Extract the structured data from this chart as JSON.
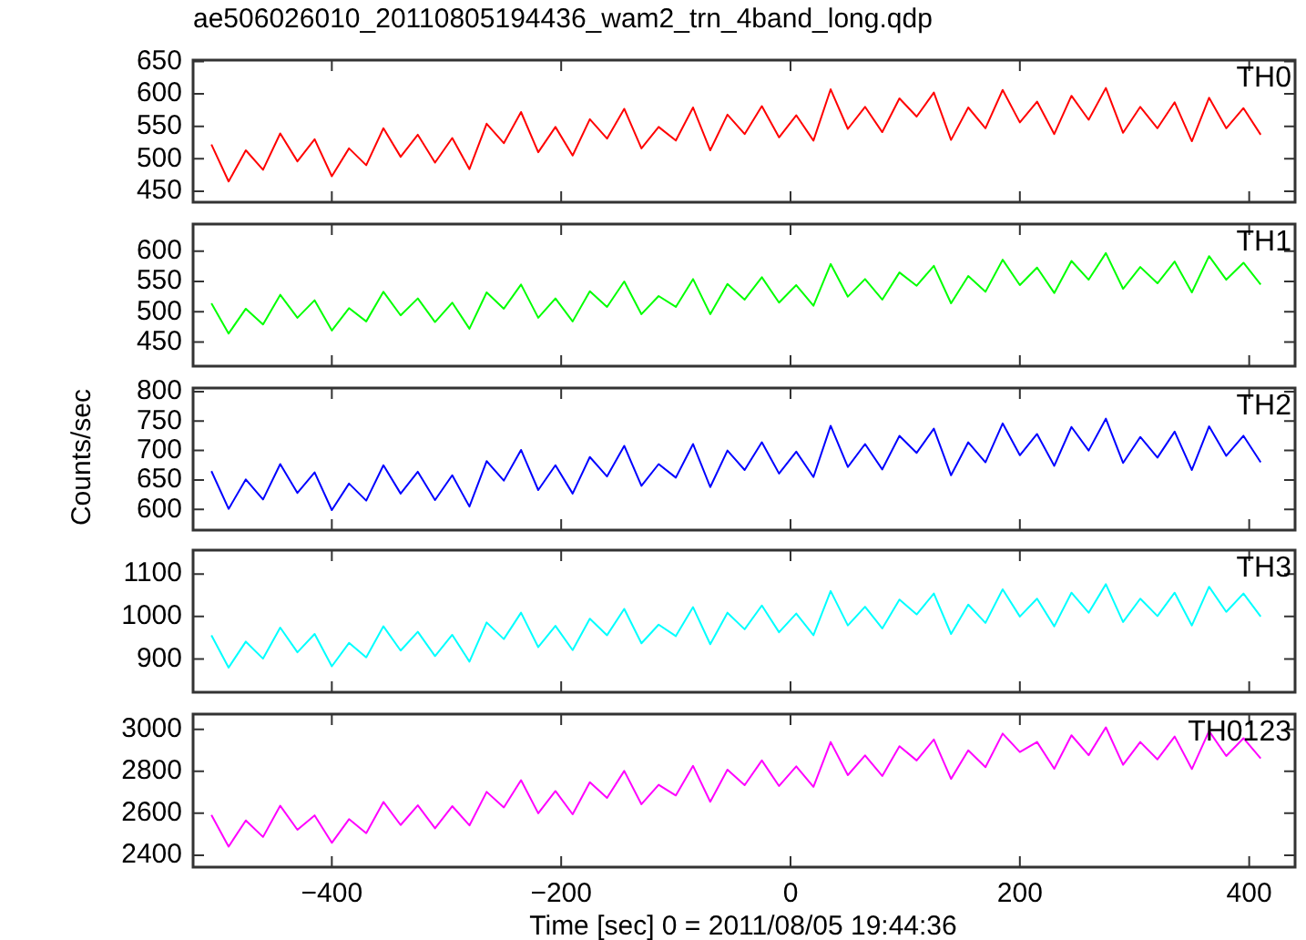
{
  "chart_data": [
    {
      "type": "line",
      "title": "ae506026010_20110805194436_wam2_trn_4band_long.qdp",
      "tick_labels": "y",
      "marker": "none",
      "grid": false,
      "xlim": [
        -521,
        440
      ],
      "xticks": [
        -400,
        -200,
        0,
        200,
        400
      ],
      "ylim": [
        433,
        652
      ],
      "yticks": [
        450,
        500,
        550,
        600,
        650
      ],
      "x": [
        -505,
        -490,
        -475,
        -460,
        -445,
        -430,
        -415,
        -400,
        -385,
        -370,
        -355,
        -340,
        -325,
        -310,
        -295,
        -280,
        -265,
        -250,
        -235,
        -220,
        -205,
        -190,
        -175,
        -160,
        -145,
        -130,
        -115,
        -100,
        -85,
        -70,
        -55,
        -40,
        -25,
        -10,
        5,
        20,
        35,
        50,
        65,
        80,
        95,
        110,
        125,
        140,
        155,
        170,
        185,
        200,
        215,
        230,
        245,
        260,
        275,
        290,
        305,
        320,
        335,
        350,
        365,
        380,
        395,
        410
      ],
      "series": [
        {
          "name": "TH0",
          "color": "#ff0000",
          "values": [
            522,
            465,
            513,
            483,
            539,
            496,
            530,
            473,
            516,
            490,
            547,
            503,
            537,
            494,
            532,
            484,
            554,
            524,
            572,
            510,
            549,
            505,
            561,
            531,
            577,
            516,
            549,
            528,
            579,
            513,
            568,
            538,
            581,
            533,
            567,
            528,
            607,
            546,
            580,
            541,
            593,
            565,
            602,
            529,
            579,
            547,
            606,
            556,
            588,
            538,
            597,
            560,
            609,
            540,
            580,
            547,
            587,
            527,
            594,
            547,
            578,
            537
          ]
        }
      ]
    },
    {
      "type": "line",
      "tick_labels": "y",
      "marker": "none",
      "grid": false,
      "xlim": [
        -521,
        440
      ],
      "xticks": [
        -400,
        -200,
        0,
        200,
        400
      ],
      "ylim": [
        410,
        645
      ],
      "yticks": [
        450,
        500,
        550,
        600
      ],
      "x": [
        -505,
        -490,
        -475,
        -460,
        -445,
        -430,
        -415,
        -400,
        -385,
        -370,
        -355,
        -340,
        -325,
        -310,
        -295,
        -280,
        -265,
        -250,
        -235,
        -220,
        -205,
        -190,
        -175,
        -160,
        -145,
        -130,
        -115,
        -100,
        -85,
        -70,
        -55,
        -40,
        -25,
        -10,
        5,
        20,
        35,
        50,
        65,
        80,
        95,
        110,
        125,
        140,
        155,
        170,
        185,
        200,
        215,
        230,
        245,
        260,
        275,
        290,
        305,
        320,
        335,
        350,
        365,
        380,
        395,
        410
      ],
      "series": [
        {
          "name": "TH1",
          "color": "#00ff00",
          "values": [
            514,
            464,
            505,
            479,
            528,
            490,
            519,
            469,
            506,
            484,
            533,
            494,
            522,
            483,
            515,
            472,
            532,
            505,
            545,
            490,
            522,
            484,
            534,
            508,
            550,
            496,
            526,
            508,
            554,
            496,
            546,
            520,
            557,
            515,
            544,
            510,
            579,
            525,
            554,
            520,
            565,
            543,
            576,
            514,
            559,
            533,
            586,
            544,
            573,
            531,
            584,
            553,
            597,
            538,
            574,
            547,
            583,
            532,
            592,
            553,
            581,
            545
          ]
        }
      ]
    },
    {
      "type": "line",
      "ylabel": "Counts/sec",
      "tick_labels": "y",
      "marker": "none",
      "grid": false,
      "xlim": [
        -521,
        440
      ],
      "xticks": [
        -400,
        -200,
        0,
        200,
        400
      ],
      "ylim": [
        565,
        806
      ],
      "yticks": [
        600,
        650,
        700,
        750,
        800
      ],
      "x": [
        -505,
        -490,
        -475,
        -460,
        -445,
        -430,
        -415,
        -400,
        -385,
        -370,
        -355,
        -340,
        -325,
        -310,
        -295,
        -280,
        -265,
        -250,
        -235,
        -220,
        -205,
        -190,
        -175,
        -160,
        -145,
        -130,
        -115,
        -100,
        -85,
        -70,
        -55,
        -40,
        -25,
        -10,
        5,
        20,
        35,
        50,
        65,
        80,
        95,
        110,
        125,
        140,
        155,
        170,
        185,
        200,
        215,
        230,
        245,
        260,
        275,
        290,
        305,
        320,
        335,
        350,
        365,
        380,
        395,
        410
      ],
      "series": [
        {
          "name": "TH2",
          "color": "#0000ff",
          "values": [
            665,
            601,
            651,
            617,
            677,
            628,
            663,
            599,
            644,
            615,
            675,
            627,
            664,
            616,
            658,
            605,
            682,
            649,
            701,
            633,
            675,
            627,
            689,
            656,
            708,
            640,
            677,
            654,
            711,
            638,
            700,
            667,
            714,
            661,
            698,
            655,
            742,
            672,
            711,
            668,
            725,
            696,
            737,
            658,
            714,
            680,
            746,
            692,
            728,
            674,
            740,
            700,
            754,
            679,
            723,
            688,
            732,
            667,
            741,
            691,
            725,
            680
          ]
        }
      ]
    },
    {
      "type": "line",
      "tick_labels": "y",
      "marker": "none",
      "grid": false,
      "xlim": [
        -521,
        440
      ],
      "xticks": [
        -400,
        -200,
        0,
        200,
        400
      ],
      "ylim": [
        822,
        1156
      ],
      "yticks": [
        900,
        1000,
        1100
      ],
      "x": [
        -505,
        -490,
        -475,
        -460,
        -445,
        -430,
        -415,
        -400,
        -385,
        -370,
        -355,
        -340,
        -325,
        -310,
        -295,
        -280,
        -265,
        -250,
        -235,
        -220,
        -205,
        -190,
        -175,
        -160,
        -145,
        -130,
        -115,
        -100,
        -85,
        -70,
        -55,
        -40,
        -25,
        -10,
        5,
        20,
        35,
        50,
        65,
        80,
        95,
        110,
        125,
        140,
        155,
        170,
        185,
        200,
        215,
        230,
        245,
        260,
        275,
        290,
        305,
        320,
        335,
        350,
        365,
        380,
        395,
        410
      ],
      "series": [
        {
          "name": "TH3",
          "color": "#00ffff",
          "values": [
            956,
            880,
            941,
            901,
            974,
            916,
            959,
            883,
            938,
            904,
            977,
            920,
            964,
            907,
            957,
            894,
            986,
            947,
            1009,
            928,
            978,
            921,
            995,
            956,
            1018,
            937,
            981,
            954,
            1022,
            935,
            1009,
            970,
            1026,
            963,
            1007,
            956,
            1060,
            979,
            1023,
            972,
            1040,
            1005,
            1054,
            959,
            1028,
            985,
            1064,
            1000,
            1042,
            977,
            1056,
            1009,
            1076,
            987,
            1042,
            1001,
            1056,
            979,
            1070,
            1011,
            1054,
            1000
          ]
        }
      ]
    },
    {
      "type": "line",
      "xlabel": "Time [sec] 0 = 2011/08/05 19:44:36",
      "marker": "none",
      "grid": false,
      "xlim": [
        -521,
        440
      ],
      "xticks": [
        -400,
        -200,
        0,
        200,
        400
      ],
      "ylim": [
        2343,
        3073
      ],
      "yticks": [
        2400,
        2600,
        2800,
        3000
      ],
      "x": [
        -505,
        -490,
        -475,
        -460,
        -445,
        -430,
        -415,
        -400,
        -385,
        -370,
        -355,
        -340,
        -325,
        -310,
        -295,
        -280,
        -265,
        -250,
        -235,
        -220,
        -205,
        -190,
        -175,
        -160,
        -145,
        -130,
        -115,
        -100,
        -85,
        -70,
        -55,
        -40,
        -25,
        -10,
        5,
        20,
        35,
        50,
        65,
        80,
        95,
        110,
        125,
        140,
        155,
        170,
        185,
        200,
        215,
        230,
        245,
        260,
        275,
        290,
        305,
        320,
        335,
        350,
        365,
        380,
        395,
        410
      ],
      "series": [
        {
          "name": "TH0123",
          "color": "#ff00ff",
          "values": [
            2592,
            2441,
            2566,
            2487,
            2636,
            2521,
            2590,
            2459,
            2572,
            2505,
            2654,
            2544,
            2638,
            2528,
            2634,
            2542,
            2702,
            2628,
            2758,
            2600,
            2706,
            2595,
            2748,
            2673,
            2802,
            2643,
            2736,
            2685,
            2826,
            2655,
            2808,
            2734,
            2852,
            2730,
            2824,
            2726,
            2940,
            2782,
            2876,
            2778,
            2920,
            2852,
            2952,
            2764,
            2900,
            2820,
            2980,
            2892,
            2940,
            2812,
            2972,
            2877,
            3010,
            2831,
            2940,
            2857,
            2966,
            2811,
            2992,
            2873,
            2958,
            2862
          ]
        }
      ]
    }
  ]
}
